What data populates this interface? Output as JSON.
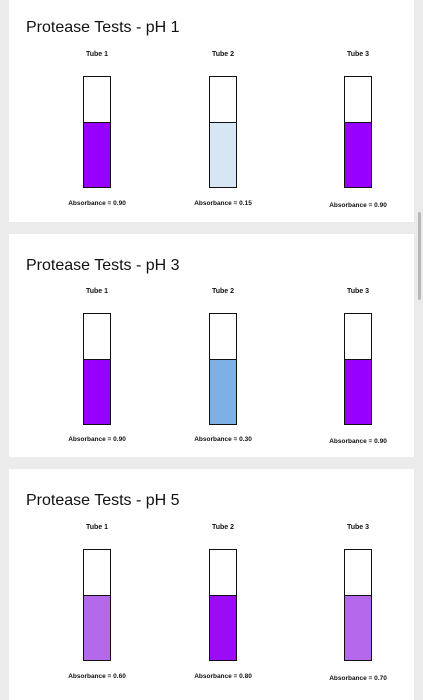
{
  "panels": [
    {
      "title": "Protease Tests - pH 1",
      "tubes": [
        {
          "label": "Tube 1",
          "absorbance_text": "Absorbance = 0.90",
          "fill_fraction": 0.58,
          "fill_color": "#9700ff"
        },
        {
          "label": "Tube 2",
          "absorbance_text": "Absorbance = 0.15",
          "fill_fraction": 0.58,
          "fill_color": "#d7e6f5"
        },
        {
          "label": "Tube 3",
          "absorbance_text": "Absorbance = 0.90",
          "fill_fraction": 0.58,
          "fill_color": "#9700ff"
        }
      ]
    },
    {
      "title": "Protease Tests - pH 3",
      "tubes": [
        {
          "label": "Tube 1",
          "absorbance_text": "Absorbance = 0.90",
          "fill_fraction": 0.58,
          "fill_color": "#9700ff"
        },
        {
          "label": "Tube 2",
          "absorbance_text": "Absorbance = 0.30",
          "fill_fraction": 0.58,
          "fill_color": "#7cb0e6"
        },
        {
          "label": "Tube 3",
          "absorbance_text": "Absorbance = 0.90",
          "fill_fraction": 0.58,
          "fill_color": "#9700ff"
        }
      ]
    },
    {
      "title": "Protease Tests - pH 5",
      "tubes": [
        {
          "label": "Tube 1",
          "absorbance_text": "Absorbance = 0.60",
          "fill_fraction": 0.58,
          "fill_color": "#b469ea"
        },
        {
          "label": "Tube 2",
          "absorbance_text": "Absorbance = 0.80",
          "fill_fraction": 0.58,
          "fill_color": "#9b0bf5"
        },
        {
          "label": "Tube 3",
          "absorbance_text": "Absorbance = 0.70",
          "fill_fraction": 0.58,
          "fill_color": "#b469ea"
        }
      ]
    }
  ]
}
